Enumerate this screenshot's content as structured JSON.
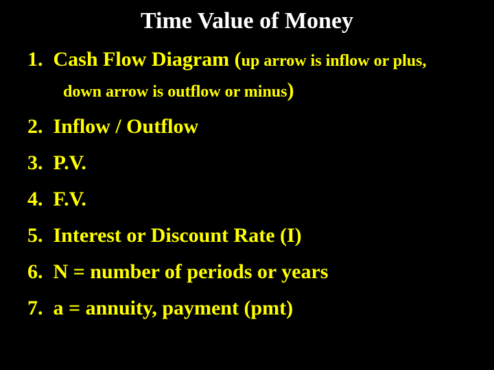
{
  "background_color": "#000000",
  "title": {
    "text": "Time Value of Money",
    "color": "#ffffff",
    "fontsize": 34,
    "fontweight": "bold",
    "align": "center"
  },
  "list": {
    "color": "#ffff00",
    "fontsize": 30,
    "sub_fontsize": 24,
    "fontweight": "bold",
    "items": [
      {
        "num": "1.",
        "main": "Cash Flow Diagram (",
        "sub": "up arrow is inflow or plus, down arrow is outflow or minus",
        "close": ")"
      },
      {
        "num": "2.",
        "main": "Inflow / Outflow"
      },
      {
        "num": "3.",
        "main": "P.V."
      },
      {
        "num": "4.",
        "main": "F.V."
      },
      {
        "num": "5.",
        "main": "Interest or Discount Rate (I)"
      },
      {
        "num": "6.",
        "main": "N = number of periods or years"
      },
      {
        "num": "7.",
        "main": "a = annuity, payment (pmt)"
      }
    ]
  }
}
